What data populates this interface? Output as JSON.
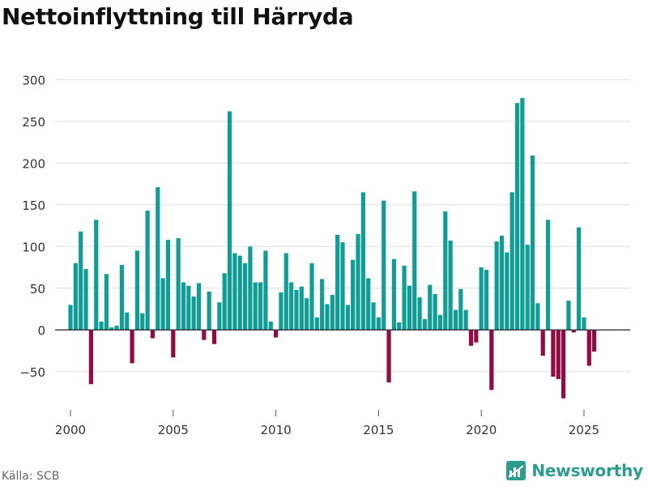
{
  "title": "Nettoinflyttning till Härryda",
  "source": "Källa: SCB",
  "brand": {
    "name": "Newsworthy",
    "icon": "newsworthy-logo-icon",
    "color": "#2a9d8f"
  },
  "colors": {
    "positive": "#0f9e96",
    "negative": "#950a40",
    "grid": "#dddddd",
    "zero": "#333333"
  },
  "chart_data": {
    "type": "bar",
    "title": "Nettoinflyttning till Härryda",
    "xlabel": "",
    "ylabel": "",
    "ylim": [
      -90,
      310
    ],
    "xlim": [
      1999.25,
      2027.25
    ],
    "y_ticks": [
      -50,
      0,
      50,
      100,
      150,
      200,
      250,
      300
    ],
    "y_tick_labels": [
      "−50",
      "0",
      "50",
      "100",
      "150",
      "200",
      "250",
      "300"
    ],
    "x_ticks": [
      2000,
      2005,
      2010,
      2015,
      2020,
      2025
    ],
    "x_tick_labels": [
      "2000",
      "2005",
      "2010",
      "2015",
      "2020",
      "2025"
    ],
    "frequency": "quarterly",
    "start_year": 2000,
    "values": [
      30,
      80,
      118,
      73,
      -65,
      132,
      10,
      67,
      3,
      5,
      78,
      21,
      -40,
      95,
      20,
      143,
      -10,
      171,
      62,
      108,
      -33,
      110,
      57,
      53,
      40,
      56,
      -12,
      46,
      -17,
      33,
      68,
      262,
      92,
      89,
      80,
      100,
      57,
      57,
      95,
      10,
      -9,
      45,
      92,
      57,
      48,
      52,
      38,
      80,
      15,
      61,
      31,
      42,
      114,
      105,
      30,
      84,
      115,
      165,
      62,
      33,
      15,
      155,
      -63,
      85,
      9,
      77,
      53,
      166,
      39,
      13,
      54,
      43,
      18,
      142,
      107,
      24,
      49,
      24,
      -19,
      -15,
      75,
      72,
      -72,
      106,
      113,
      93,
      165,
      272,
      278,
      102,
      209,
      32,
      -31,
      132,
      -56,
      -59,
      -82,
      35,
      -3,
      123,
      15,
      -43,
      -26
    ]
  }
}
